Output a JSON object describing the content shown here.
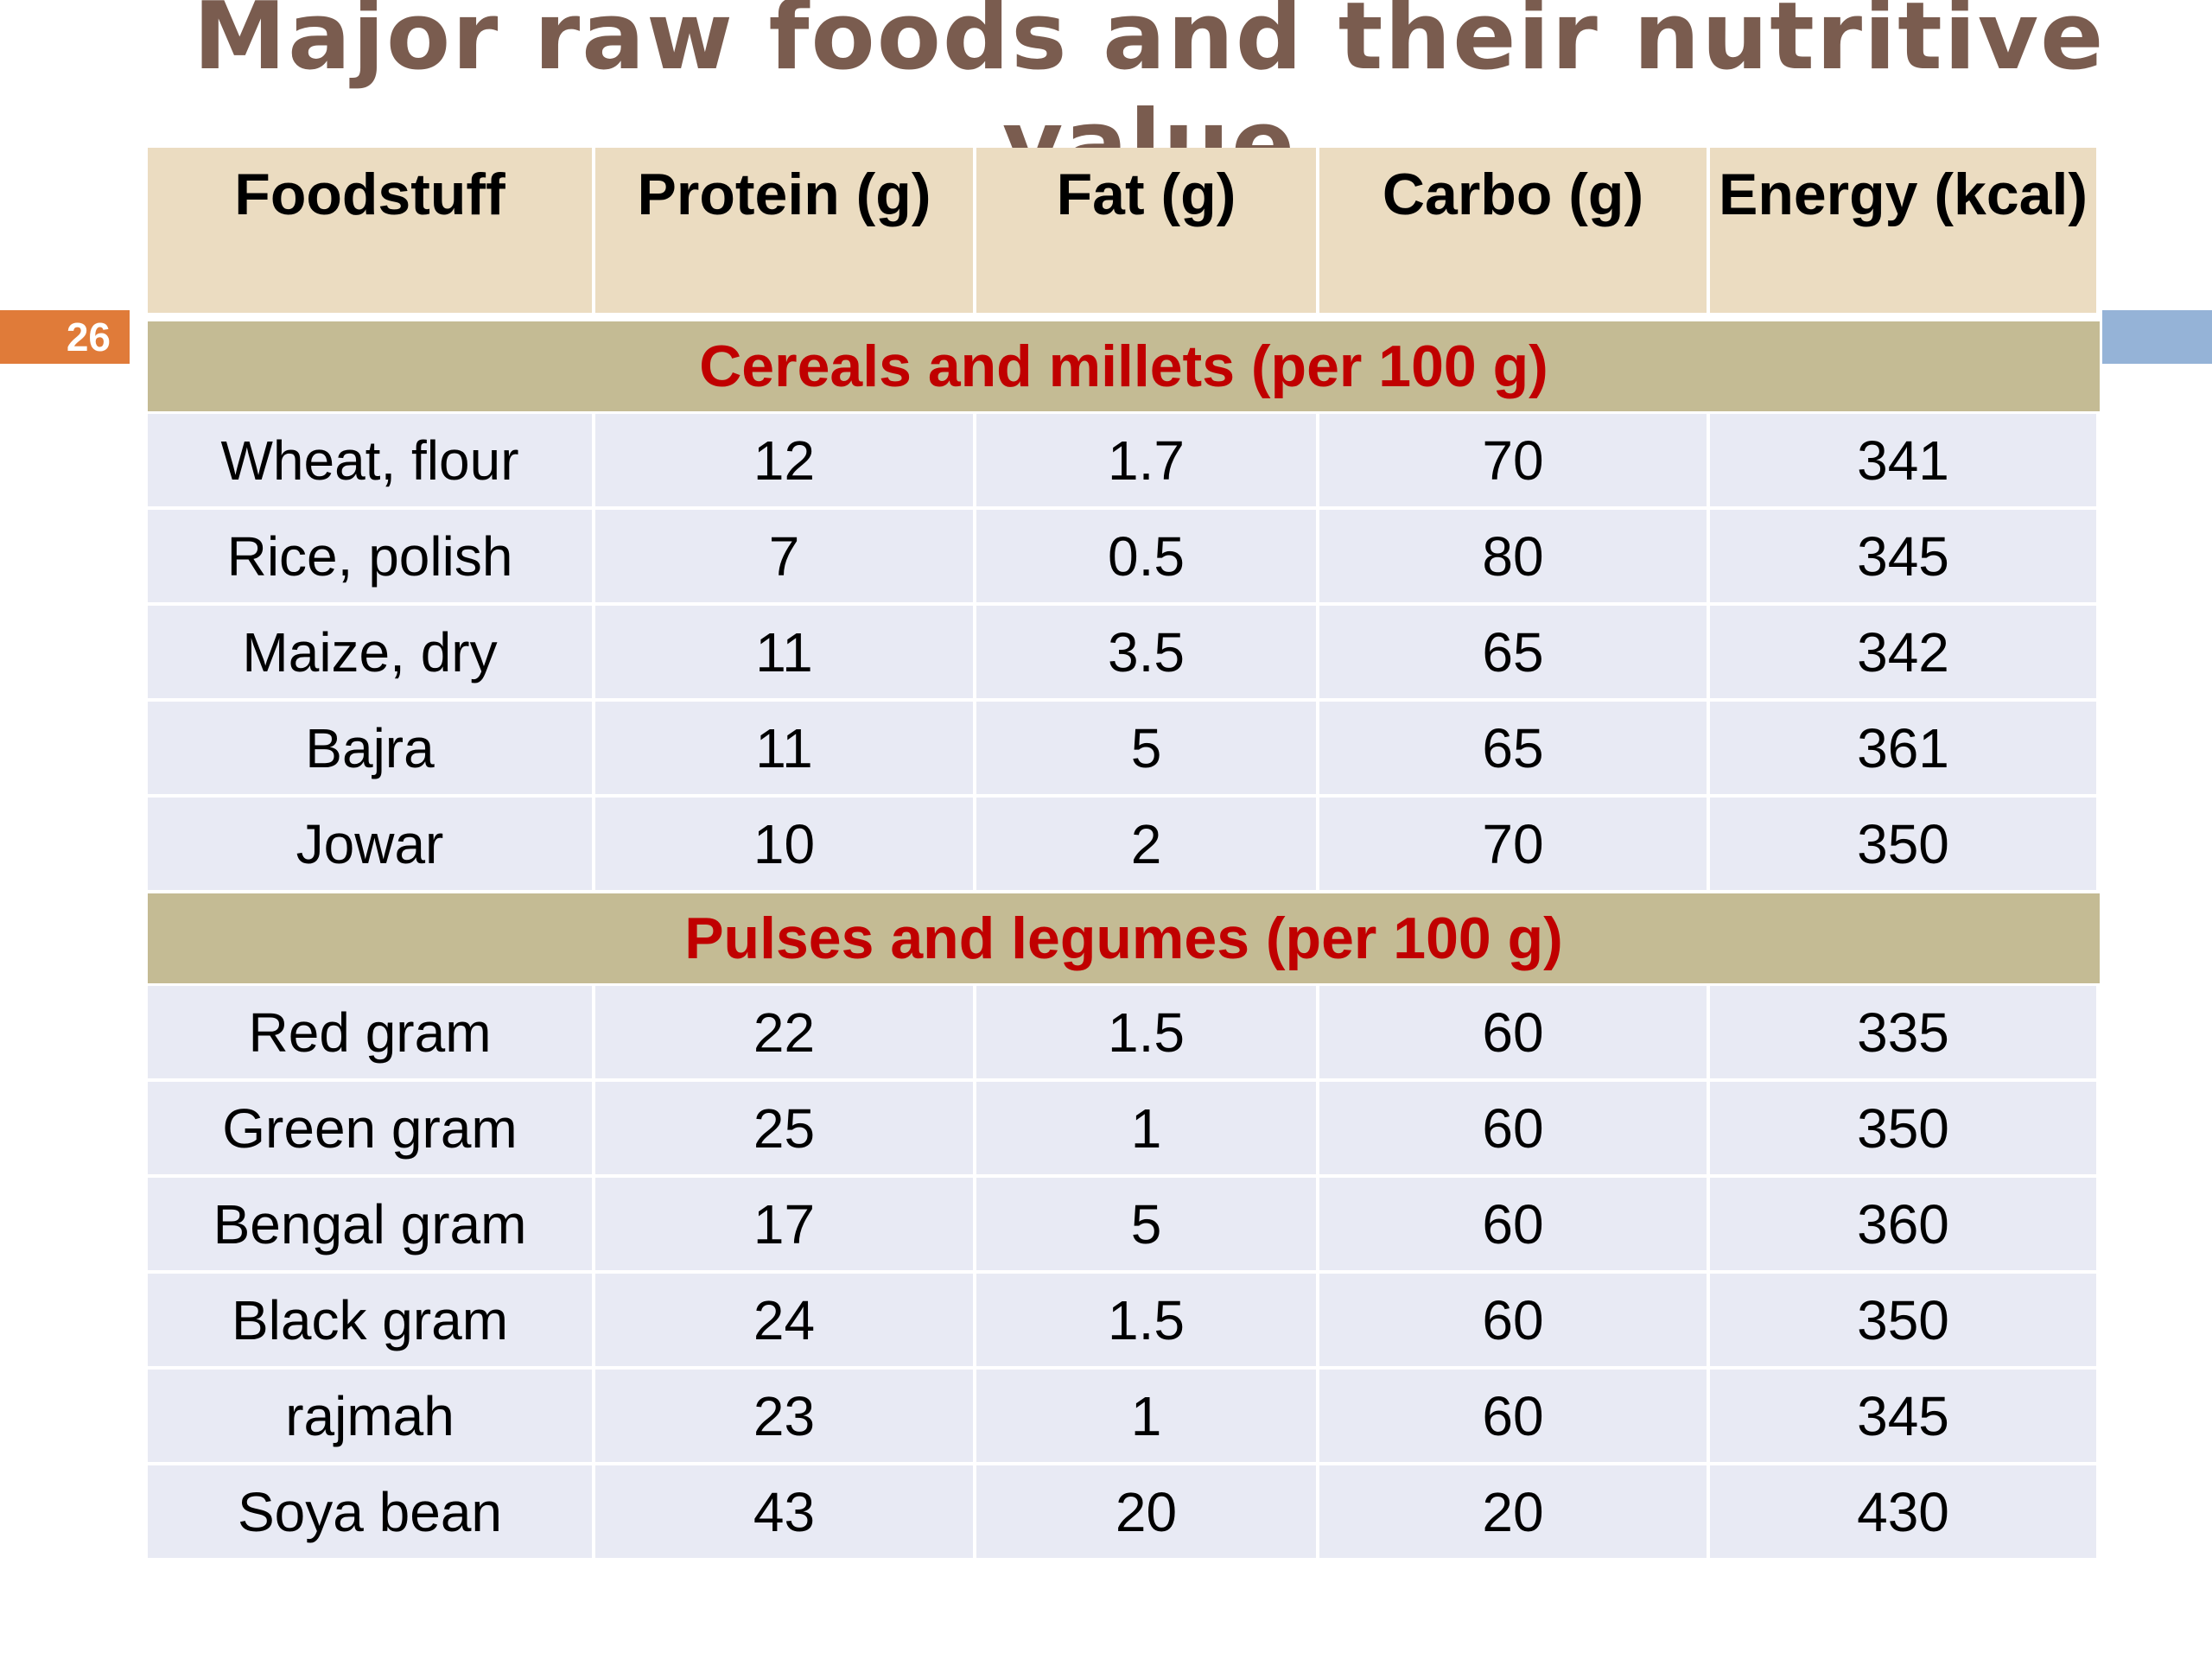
{
  "slide_number": "26",
  "title": "Major raw foods and their nutritive value",
  "table": {
    "header": [
      "Foodstuff",
      "Protein (g)",
      "Fat (g)",
      "Carbo (g)",
      "Energy (kcal)"
    ],
    "sections": [
      {
        "title": "Cereals and millets (per 100 g)",
        "rows": [
          [
            "Wheat, flour",
            12,
            1.7,
            70,
            341
          ],
          [
            "Rice, polish",
            7,
            0.5,
            80,
            345
          ],
          [
            "Maize, dry",
            11,
            3.5,
            65,
            342
          ],
          [
            "Bajra",
            11,
            5,
            65,
            361
          ],
          [
            "Jowar",
            10,
            2,
            70,
            350
          ]
        ]
      },
      {
        "title": "Pulses and legumes (per 100 g)",
        "rows": [
          [
            "Red gram",
            22,
            1.5,
            60,
            335
          ],
          [
            "Green gram",
            25,
            1,
            60,
            350
          ],
          [
            "Bengal gram",
            17,
            5,
            60,
            360
          ],
          [
            "Black gram",
            24,
            1.5,
            60,
            350
          ],
          [
            "rajmah",
            23,
            1,
            60,
            345
          ],
          [
            "Soya bean",
            43,
            20,
            20,
            430
          ]
        ]
      }
    ]
  }
}
